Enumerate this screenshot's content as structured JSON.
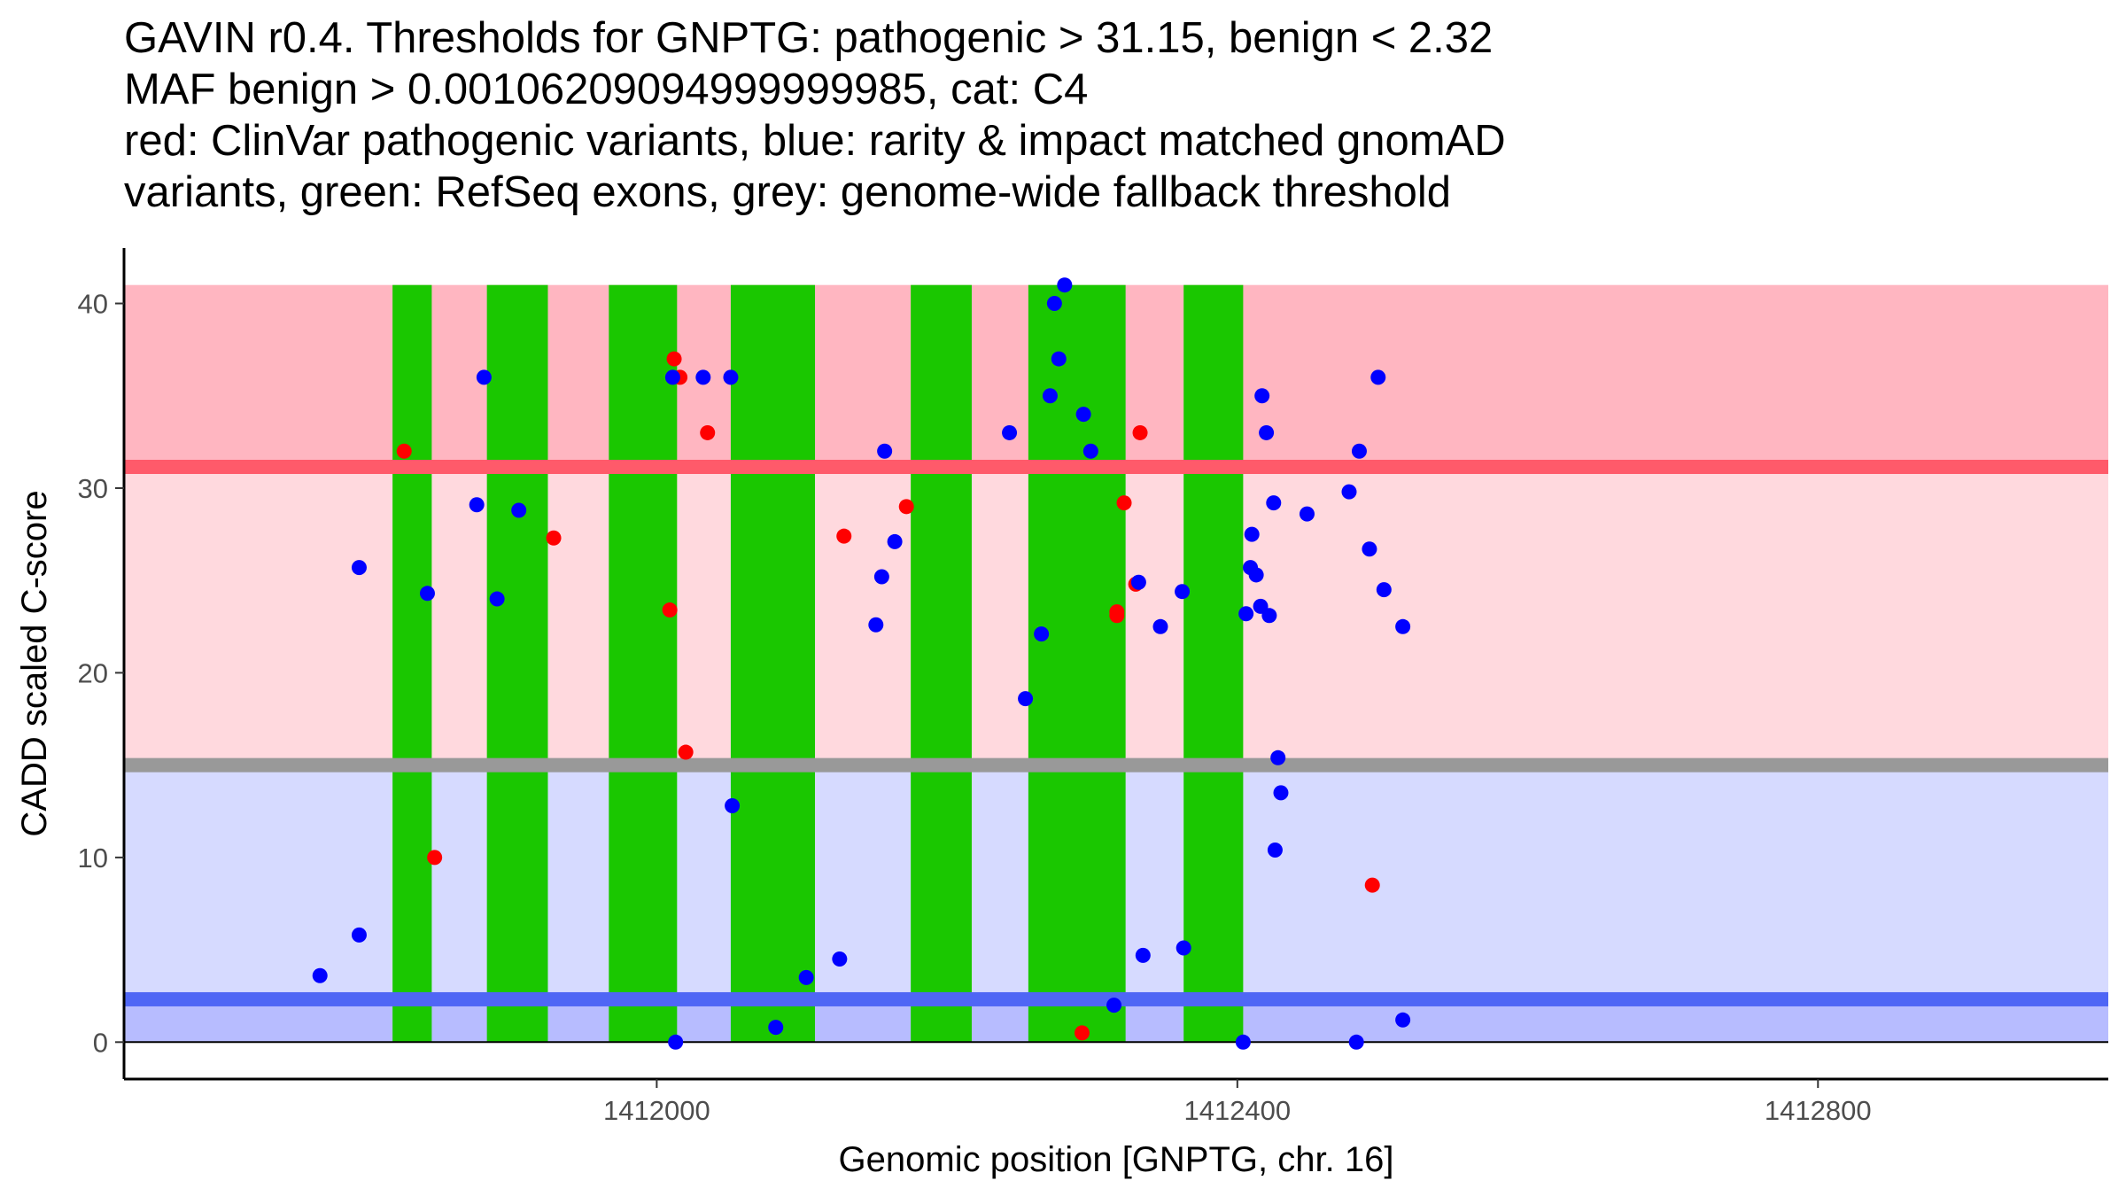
{
  "title_lines": [
    "GAVIN r0.4. Thresholds for GNPTG: pathogenic > 31.15, benign < 2.32",
    "MAF benign > 0.00106209094999999985, cat: C4",
    "red: ClinVar pathogenic variants, blue: rarity & impact matched gnomAD",
    "variants, green: RefSeq exons, grey: genome-wide fallback threshold"
  ],
  "chart_data": {
    "type": "scatter",
    "xlabel": "Genomic position [GNPTG, chr. 16]",
    "ylabel": "CADD scaled C-score",
    "xlim": [
      1411633,
      1413000
    ],
    "ylim": [
      -2,
      43
    ],
    "xticks": [
      1412000,
      1412400,
      1412800
    ],
    "xtick_labels": [
      "1412000",
      "1412400",
      "1412800"
    ],
    "yticks": [
      0,
      10,
      20,
      30,
      40
    ],
    "ytick_labels": [
      "0",
      "10",
      "20",
      "30",
      "40"
    ],
    "grid": false,
    "colors": {
      "pathogenic_zone": "#ffb6c1",
      "vus_zone": "#ffd9de",
      "benign_zone": "#d6daff",
      "low_zone": "#b7bcff",
      "pathogenic_line": "#ff5a6a",
      "benign_line": "#4f66f5",
      "fallback_line": "#999999",
      "exon": "#1ac700",
      "clinvar_point": "#ff0000",
      "gnomad_point": "#0000ff"
    },
    "bands": [
      {
        "name": "pathogenic range",
        "y0": 31.15,
        "y1": 41,
        "color": "#ffb6c1"
      },
      {
        "name": "intermediate range",
        "y0": 15,
        "y1": 31.15,
        "color": "#ffd9de"
      },
      {
        "name": "benign range",
        "y0": 2.32,
        "y1": 15,
        "color": "#d6daff"
      },
      {
        "name": "low range",
        "y0": 0,
        "y1": 2.32,
        "color": "#b7bcff"
      }
    ],
    "thresholds": [
      {
        "name": "pathogenic threshold",
        "y": 31.15,
        "color": "#ff5a6a"
      },
      {
        "name": "genome-wide fallback threshold",
        "y": 15,
        "color": "#999999"
      },
      {
        "name": "benign threshold",
        "y": 2.32,
        "color": "#4f66f5"
      }
    ],
    "exons": [
      {
        "start": 1411818,
        "end": 1411845
      },
      {
        "start": 1411883,
        "end": 1411925
      },
      {
        "start": 1411967,
        "end": 1412014
      },
      {
        "start": 1412051,
        "end": 1412109
      },
      {
        "start": 1412175,
        "end": 1412217
      },
      {
        "start": 1412256,
        "end": 1412323
      },
      {
        "start": 1412363,
        "end": 1412404
      }
    ],
    "series": [
      {
        "name": "ClinVar pathogenic variants",
        "color": "#ff0000",
        "points": [
          [
            1411826,
            32.0
          ],
          [
            1411847,
            10.0
          ],
          [
            1411929,
            27.3
          ],
          [
            1412009,
            23.4
          ],
          [
            1412012,
            37.0
          ],
          [
            1412016,
            36.0
          ],
          [
            1412020,
            15.7
          ],
          [
            1412035,
            33.0
          ],
          [
            1412129,
            27.4
          ],
          [
            1412172,
            29.0
          ],
          [
            1412293,
            0.5
          ],
          [
            1412317,
            23.3
          ],
          [
            1412317,
            23.1
          ],
          [
            1412322,
            29.2
          ],
          [
            1412330,
            24.8
          ],
          [
            1412333,
            33.0
          ],
          [
            1412493,
            8.5
          ]
        ]
      },
      {
        "name": "rarity & impact matched gnomAD variants",
        "color": "#0000ff",
        "points": [
          [
            1411768,
            3.6
          ],
          [
            1411795,
            5.8
          ],
          [
            1411795,
            25.7
          ],
          [
            1411842,
            24.3
          ],
          [
            1411876,
            29.1
          ],
          [
            1411881,
            36.0
          ],
          [
            1411890,
            24.0
          ],
          [
            1411905,
            28.8
          ],
          [
            1412011,
            36.0
          ],
          [
            1412013,
            0.0
          ],
          [
            1412032,
            36.0
          ],
          [
            1412052,
            12.8
          ],
          [
            1412051,
            36.0
          ],
          [
            1412082,
            0.8
          ],
          [
            1412103,
            3.5
          ],
          [
            1412126,
            4.5
          ],
          [
            1412151,
            22.6
          ],
          [
            1412155,
            25.2
          ],
          [
            1412157,
            32.0
          ],
          [
            1412164,
            27.1
          ],
          [
            1412243,
            33.0
          ],
          [
            1412254,
            18.6
          ],
          [
            1412265,
            22.1
          ],
          [
            1412271,
            35.0
          ],
          [
            1412274,
            40.0
          ],
          [
            1412277,
            37.0
          ],
          [
            1412281,
            41.0
          ],
          [
            1412294,
            34.0
          ],
          [
            1412299,
            32.0
          ],
          [
            1412315,
            2.0
          ],
          [
            1412332,
            24.9
          ],
          [
            1412335,
            4.7
          ],
          [
            1412347,
            22.5
          ],
          [
            1412362,
            24.4
          ],
          [
            1412363,
            5.1
          ],
          [
            1412404,
            0.0
          ],
          [
            1412406,
            23.2
          ],
          [
            1412409,
            25.7
          ],
          [
            1412410,
            27.5
          ],
          [
            1412413,
            25.3
          ],
          [
            1412416,
            23.6
          ],
          [
            1412417,
            35.0
          ],
          [
            1412420,
            33.0
          ],
          [
            1412422,
            23.1
          ],
          [
            1412425,
            29.2
          ],
          [
            1412426,
            10.4
          ],
          [
            1412428,
            15.4
          ],
          [
            1412430,
            13.5
          ],
          [
            1412448,
            28.6
          ],
          [
            1412477,
            29.8
          ],
          [
            1412482,
            0.0
          ],
          [
            1412484,
            32.0
          ],
          [
            1412491,
            26.7
          ],
          [
            1412497,
            36.0
          ],
          [
            1412501,
            24.5
          ],
          [
            1412514,
            22.5
          ],
          [
            1412514,
            1.2
          ]
        ]
      }
    ]
  }
}
